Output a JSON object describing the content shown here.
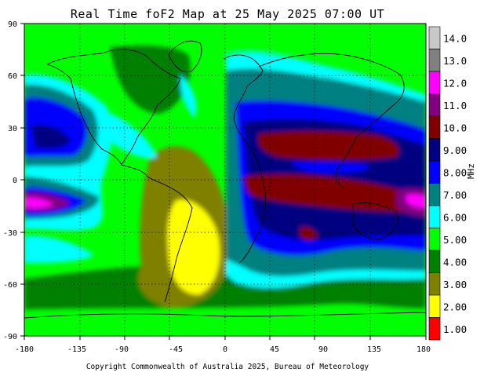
{
  "title": "Real Time foF2 Map at 25 May 2025 07:00 UT",
  "copyright": "Copyright Commonwealth of Australia 2025, Bureau of Meteorology",
  "map": {
    "x_ticks": [
      "-180",
      "-135",
      "-90",
      "-45",
      "0",
      "45",
      "90",
      "135",
      "180"
    ],
    "y_ticks": [
      "90",
      "60",
      "30",
      "0",
      "-30",
      "-60",
      "-90"
    ]
  },
  "legend": {
    "unit": "MHz",
    "entries": [
      {
        "label": "14.0",
        "color": "#c8c8c8"
      },
      {
        "label": "13.0",
        "color": "#808080"
      },
      {
        "label": "12.0",
        "color": "#ff00ff"
      },
      {
        "label": "11.0",
        "color": "#800080"
      },
      {
        "label": "10.0",
        "color": "#800000"
      },
      {
        "label": "9.00",
        "color": "#000080"
      },
      {
        "label": "8.00",
        "color": "#0000ff"
      },
      {
        "label": "7.00",
        "color": "#008080"
      },
      {
        "label": "6.00",
        "color": "#00ffff"
      },
      {
        "label": "5.00",
        "color": "#00ff00"
      },
      {
        "label": "4.00",
        "color": "#008000"
      },
      {
        "label": "3.00",
        "color": "#808000"
      },
      {
        "label": "2.00",
        "color": "#ffff00"
      },
      {
        "label": "1.00",
        "color": "#ff0000"
      }
    ]
  }
}
